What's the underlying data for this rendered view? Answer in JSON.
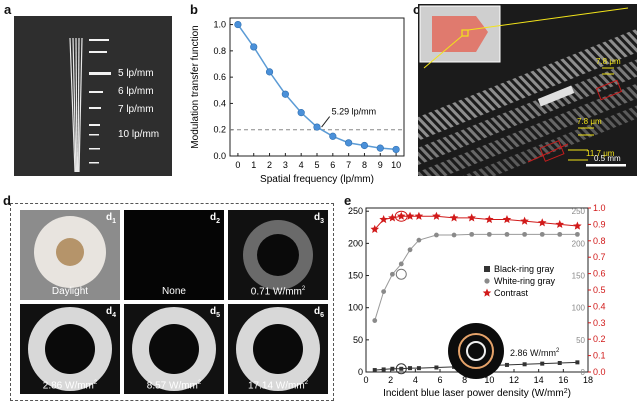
{
  "panel_labels": {
    "a": "a",
    "b": "b",
    "c": "c",
    "d": "d",
    "e": "e"
  },
  "panel_a": {
    "lp_labels": [
      "5 lp/mm",
      "6 lp/mm",
      "7 lp/mm",
      "10 lp/mm"
    ]
  },
  "panel_b": {
    "ylabel": "Modulation transfer function",
    "xlabel": "Spatial frequency (lp/mm)",
    "annotation": "5.29 lp/mm",
    "xticks": [
      "0",
      "1",
      "2",
      "3",
      "4",
      "5",
      "6",
      "7",
      "8",
      "9",
      "10"
    ],
    "yticks": [
      "0.0",
      "0.2",
      "0.4",
      "0.6",
      "0.8",
      "1.0"
    ]
  },
  "panel_c": {
    "dims": [
      "7.8 μm",
      "7.8 μm",
      "11.7 μm"
    ],
    "scalebar": "0.5 mm"
  },
  "panel_d": {
    "sub": [
      {
        "id": "d",
        "sub": "1",
        "caption": "Daylight",
        "sup": ""
      },
      {
        "id": "d",
        "sub": "2",
        "caption": "None",
        "sup": ""
      },
      {
        "id": "d",
        "sub": "3",
        "caption": "0.71 W/mm",
        "sup": "2"
      },
      {
        "id": "d",
        "sub": "4",
        "caption": "2.86 W/mm",
        "sup": "2"
      },
      {
        "id": "d",
        "sub": "5",
        "caption": "8.57 W/mm",
        "sup": "2"
      },
      {
        "id": "d",
        "sub": "6",
        "caption": "17.14 W/mm",
        "sup": "2"
      }
    ]
  },
  "panel_e": {
    "xlabel": "Incident blue laser power density (W/mm",
    "xlabel_sup": "2",
    "xlabel_end": ")",
    "legend": [
      "Black-ring gray",
      "White-ring gray",
      "Contrast"
    ],
    "inset_label": "2.86 W/mm",
    "inset_sup": "2",
    "xticks": [
      "0",
      "2",
      "4",
      "6",
      "8",
      "10",
      "12",
      "14",
      "16",
      "18"
    ],
    "yticks_left": [
      "0",
      "50",
      "100",
      "150",
      "200",
      "250"
    ],
    "yticks_right_gray": [
      "0",
      "50",
      "100",
      "150",
      "200",
      "250"
    ],
    "yticks_right_red": [
      "0.0",
      "0.1",
      "0.2",
      "0.3",
      "0.4",
      "0.5",
      "0.6",
      "0.7",
      "0.8",
      "0.9",
      "1.0"
    ]
  },
  "chart_data": [
    {
      "type": "line",
      "xlabel": "Spatial frequency (lp/mm)",
      "ylabel": "Modulation transfer function",
      "xlim": [
        -0.5,
        10.5
      ],
      "ylim": [
        0,
        1.05
      ],
      "x": [
        0,
        1,
        2,
        3,
        4,
        5,
        6,
        7,
        8,
        9,
        10
      ],
      "series": [
        {
          "values": [
            1.0,
            0.83,
            0.64,
            0.47,
            0.33,
            0.22,
            0.15,
            0.1,
            0.08,
            0.06,
            0.05
          ]
        }
      ],
      "reference_line": {
        "y": 0.2,
        "style": "dashed"
      },
      "annotation": "5.29 lp/mm"
    },
    {
      "type": "line",
      "xlabel": "Incident blue laser power density (W/mm2)",
      "xlim": [
        0,
        18
      ],
      "ylim": [
        0,
        255
      ],
      "series": [
        {
          "name": "Black-ring gray",
          "x": [
            0.71,
            1.43,
            2.14,
            2.86,
            3.57,
            4.29,
            5.71,
            7.14,
            8.57,
            10,
            11.43,
            12.86,
            14.29,
            15.71,
            17.14
          ],
          "values": [
            3,
            4,
            5,
            5,
            6,
            6,
            7,
            8,
            9,
            10,
            11,
            12,
            13,
            14,
            15
          ]
        },
        {
          "name": "White-ring gray",
          "x": [
            0.71,
            1.43,
            2.14,
            2.86,
            3.57,
            4.29,
            5.71,
            7.14,
            8.57,
            10,
            11.43,
            12.86,
            14.29,
            15.71,
            17.14
          ],
          "values": [
            80,
            125,
            152,
            168,
            190,
            205,
            213,
            213,
            214,
            214,
            214,
            214,
            214,
            214,
            214
          ]
        },
        {
          "name": "Contrast",
          "axis": "right",
          "ylim": [
            0,
            1
          ],
          "x": [
            0.71,
            1.43,
            2.14,
            2.86,
            3.57,
            4.29,
            5.71,
            7.14,
            8.57,
            10,
            11.43,
            12.86,
            14.29,
            15.71,
            17.14
          ],
          "values": [
            0.87,
            0.93,
            0.94,
            0.95,
            0.95,
            0.95,
            0.95,
            0.94,
            0.94,
            0.93,
            0.93,
            0.92,
            0.91,
            0.9,
            0.89
          ]
        }
      ],
      "colors": {
        "black": "#333333",
        "white": "#8a8a8a",
        "contrast": "#d11a1a"
      }
    }
  ]
}
